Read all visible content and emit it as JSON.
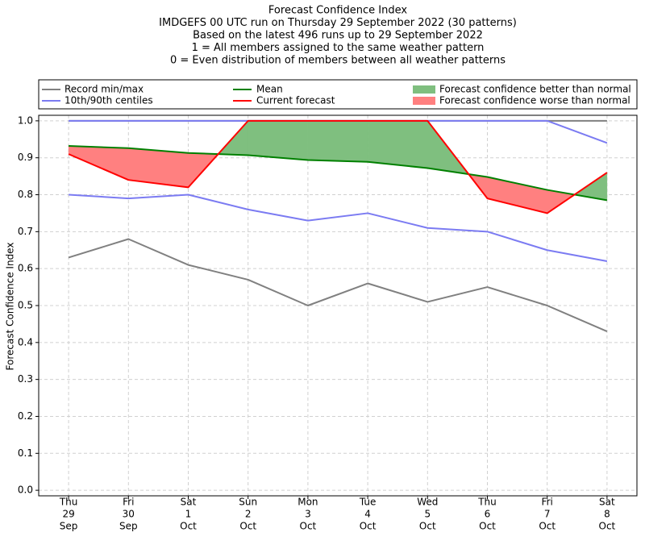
{
  "chart_data": {
    "type": "confidence",
    "title_lines": [
      "Forecast Confidence Index",
      "IMDGEFS 00 UTC run on Thursday 29 September 2022 (30 patterns)",
      "Based on the latest 496 runs up to 29 September 2022",
      "1 = All members assigned to the same weather pattern",
      "0 = Even distribution of members between all weather patterns"
    ],
    "ylabel": "Forecast Confidence Index",
    "categories": [
      [
        "Thu",
        "29",
        "Sep"
      ],
      [
        "Fri",
        "30",
        "Sep"
      ],
      [
        "Sat",
        "1",
        "Oct"
      ],
      [
        "Sun",
        "2",
        "Oct"
      ],
      [
        "Mon",
        "3",
        "Oct"
      ],
      [
        "Tue",
        "4",
        "Oct"
      ],
      [
        "Wed",
        "5",
        "Oct"
      ],
      [
        "Thu",
        "6",
        "Oct"
      ],
      [
        "Fri",
        "7",
        "Oct"
      ],
      [
        "Sat",
        "8",
        "Oct"
      ]
    ],
    "ylim": [
      -0.015,
      1.015
    ],
    "yticks": [
      {
        "value": 0,
        "label": "0.0"
      },
      0.1,
      0.2,
      0.3,
      0.4,
      0.5,
      0.6,
      0.7,
      0.8,
      0.9,
      {
        "value": 1,
        "label": "1.0"
      }
    ],
    "grid": true,
    "series": [
      {
        "name": "Record min/max",
        "color": "#808080",
        "low": [
          0.63,
          0.68,
          0.61,
          0.57,
          0.5,
          0.56,
          0.51,
          0.55,
          0.5,
          0.43
        ],
        "high": [
          1,
          1,
          1,
          1,
          1,
          1,
          1,
          1,
          1,
          1
        ]
      },
      {
        "name": "10th/90th centiles",
        "color": "#7b7bf2",
        "low": [
          0.8,
          0.79,
          0.8,
          0.76,
          0.73,
          0.75,
          0.71,
          0.7,
          0.65,
          0.62
        ],
        "high": [
          1,
          1,
          1,
          1,
          1,
          1,
          1,
          1,
          1,
          0.94
        ]
      },
      {
        "name": "Mean",
        "color": "#008000",
        "values": [
          0.932,
          0.926,
          0.913,
          0.907,
          0.894,
          0.889,
          0.872,
          0.848,
          0.813,
          0.785
        ]
      },
      {
        "name": "Current forecast",
        "color": "#ff0000",
        "values": [
          0.91,
          0.84,
          0.82,
          1,
          1,
          1,
          1,
          0.79,
          0.75,
          0.86
        ]
      }
    ],
    "fills": [
      {
        "name": "Forecast confidence better than normal",
        "color": "#7fbf7f"
      },
      {
        "name": "Forecast confidence worse than normal",
        "color": "#ff8080"
      }
    ]
  }
}
